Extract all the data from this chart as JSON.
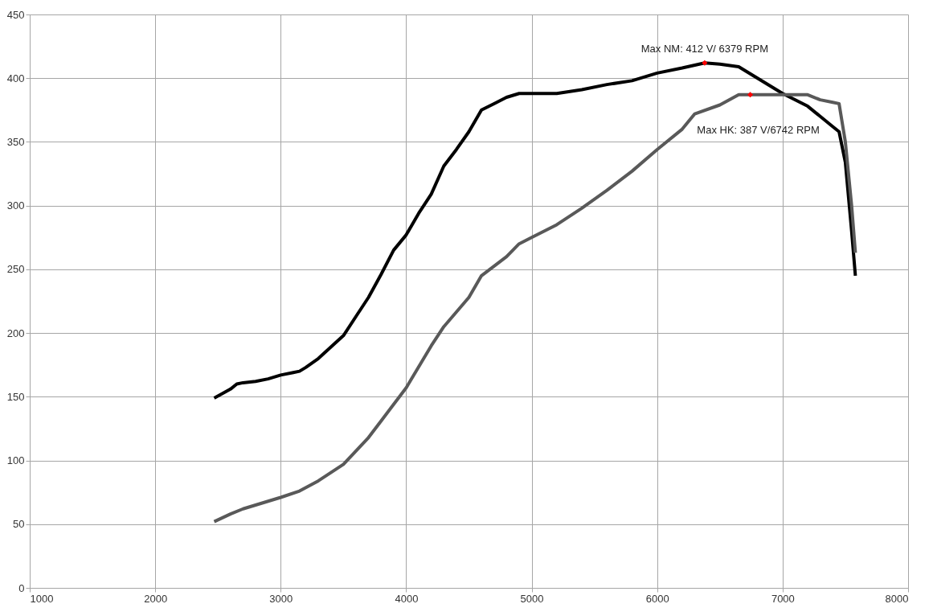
{
  "chart_data": {
    "type": "line",
    "grid": true,
    "marker": "none",
    "line_style": "solid",
    "xlim": [
      1000,
      8000
    ],
    "xticks": [
      1000,
      2000,
      3000,
      4000,
      5000,
      6000,
      7000,
      8000
    ],
    "ylim": [
      0,
      450
    ],
    "yticks": [
      0,
      50,
      100,
      150,
      200,
      250,
      300,
      350,
      400,
      450
    ],
    "series": [
      {
        "color": "#000000",
        "x": [
          2470,
          2600,
          2650,
          2700,
          2800,
          2900,
          3000,
          3100,
          3150,
          3200,
          3300,
          3400,
          3500,
          3600,
          3700,
          3800,
          3900,
          4000,
          4100,
          4200,
          4300,
          4400,
          4500,
          4600,
          4700,
          4800,
          4900,
          5000,
          5200,
          5400,
          5600,
          5800,
          6000,
          6200,
          6379,
          6500,
          6650,
          6800,
          7000,
          7200,
          7300,
          7400,
          7450,
          7500,
          7550,
          7580
        ],
        "values": [
          149,
          156,
          160,
          161,
          162,
          164,
          167,
          169,
          170,
          173,
          180,
          189,
          198,
          213,
          228,
          246,
          265,
          277,
          294,
          309,
          331,
          344,
          358,
          375,
          380,
          385,
          388,
          388,
          388,
          391,
          395,
          398,
          404,
          408,
          412,
          411,
          409,
          400,
          388,
          378,
          370,
          362,
          358,
          334,
          280,
          245
        ]
      },
      {
        "color": "#595959",
        "x": [
          2470,
          2600,
          2700,
          2900,
          3000,
          3150,
          3300,
          3500,
          3700,
          3800,
          4000,
          4200,
          4300,
          4500,
          4600,
          4800,
          4900,
          5000,
          5200,
          5400,
          5600,
          5800,
          6000,
          6200,
          6300,
          6500,
          6650,
          6742,
          7000,
          7200,
          7300,
          7400,
          7450,
          7500,
          7550,
          7580
        ],
        "values": [
          52,
          58,
          62,
          68,
          71,
          76,
          84,
          97,
          118,
          131,
          157,
          190,
          205,
          228,
          245,
          260,
          270,
          275,
          285,
          298,
          312,
          327,
          344,
          360,
          372,
          379,
          387,
          387,
          387,
          387,
          383,
          381,
          380,
          350,
          300,
          263
        ]
      }
    ],
    "annotations": [
      {
        "text": "Max NM: 412 V/ 6379 RPM",
        "x": 6379,
        "y": 412
      },
      {
        "text": "Max HK: 387 V/6742 RPM",
        "x": 6742,
        "y": 387
      }
    ]
  }
}
